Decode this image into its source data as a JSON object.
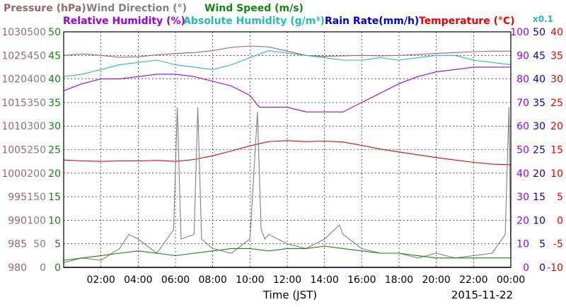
{
  "header": {
    "row1": [
      {
        "text": "Pressure (hPa)",
        "color": "#996666"
      },
      {
        "text": "Wind Direction (°)",
        "color": "#808080"
      },
      {
        "text": "Wind Speed (m/s)",
        "color": "#118811"
      }
    ],
    "row2": [
      {
        "text": "Relative Humidity (%)",
        "color": "#9900ee"
      },
      {
        "text": "Absolute Humidity (g/m³)",
        "color": "#22bbbb"
      },
      {
        "text": "Rain Rate(mm/h)",
        "color": "#0000dd"
      },
      {
        "text": "Temperature (°C)",
        "color": "#ee0000"
      }
    ],
    "abs_hum_scale": "x0.1"
  },
  "axes": {
    "pressure": [
      "980",
      "985",
      "990",
      "995",
      "1000",
      "1005",
      "1010",
      "1015",
      "1020",
      "1025",
      "1030"
    ],
    "wind_dir": [
      "0",
      "50",
      "100",
      "150",
      "200",
      "250",
      "300",
      "350",
      "400",
      "450",
      "500"
    ],
    "wind_speed": [
      "0",
      "5",
      "10",
      "15",
      "20",
      "25",
      "30",
      "35",
      "40",
      "45",
      "50"
    ],
    "humidity": [
      "0",
      "10",
      "20",
      "30",
      "40",
      "50",
      "60",
      "70",
      "80",
      "90",
      "100"
    ],
    "rain": [
      "0",
      "5",
      "10",
      "15",
      "20",
      "25",
      "30",
      "35",
      "40",
      "45",
      "50"
    ],
    "temperature": [
      "-10",
      "-5",
      "0",
      "5",
      "10",
      "15",
      "20",
      "25",
      "30",
      "35",
      "40"
    ],
    "x_ticks": [
      "02:00",
      "04:00",
      "06:00",
      "08:00",
      "10:00",
      "12:00",
      "14:00",
      "16:00",
      "18:00",
      "20:00",
      "22:00",
      "00:00"
    ],
    "x_label": "Time (JST)",
    "date": "2015-11-22"
  },
  "colors": {
    "pressure": "#996666",
    "wind_dir": "#808080",
    "wind_speed": "#118811",
    "humidity": "#9900ee",
    "abs_humidity": "#22bbbb",
    "rain": "#0000dd",
    "temperature": "#ee0000",
    "frame": "#000000"
  },
  "chart_data": {
    "type": "line",
    "x_unit": "hours (JST)",
    "series": [
      {
        "name": "Pressure (hPa)",
        "axis": "pressure",
        "x": [
          0,
          1,
          2,
          3,
          4,
          5,
          6,
          7,
          8,
          9,
          10,
          11,
          12,
          13,
          14,
          15,
          16,
          17,
          18,
          19,
          20,
          21,
          22,
          23,
          24
        ],
        "y": [
          1025,
          1025.3,
          1025,
          1024.6,
          1024.7,
          1025.1,
          1025.4,
          1025.6,
          1026,
          1026.7,
          1027,
          1026.8,
          1025.9,
          1025,
          1024.8,
          1024.9,
          1025,
          1024.9,
          1025,
          1025.2,
          1025.4,
          1025.6,
          1025.8,
          1025.9,
          1025.9
        ]
      },
      {
        "name": "Relative Humidity (%)",
        "axis": "humidity",
        "x": [
          0,
          1,
          2,
          3,
          4,
          5,
          6,
          7,
          8,
          9,
          10,
          10.5,
          11,
          12,
          13,
          14,
          15,
          16,
          17,
          18,
          19,
          20,
          21,
          22,
          23,
          24
        ],
        "y": [
          75,
          78,
          80,
          80,
          81,
          82,
          82,
          81,
          79,
          77,
          73,
          68,
          68,
          68,
          66,
          66,
          66,
          70,
          74,
          78,
          81,
          83,
          84,
          85,
          85,
          85
        ]
      },
      {
        "name": "Absolute Humidity (g/m³) x0.1",
        "axis": "humidity",
        "x": [
          0,
          1,
          2,
          3,
          4,
          5,
          6,
          7,
          8,
          9,
          10,
          11,
          12,
          13,
          14,
          15,
          16,
          17,
          18,
          19,
          20,
          21,
          22,
          23,
          24
        ],
        "y": [
          81,
          82,
          84,
          86,
          87,
          88,
          86,
          85,
          84,
          86,
          89,
          92,
          91,
          90,
          89,
          88,
          88,
          89,
          88,
          89,
          90,
          90,
          88,
          87,
          86
        ]
      },
      {
        "name": "Temperature (°C)",
        "axis": "temperature",
        "x": [
          0,
          1,
          2,
          3,
          4,
          5,
          6,
          7,
          8,
          9,
          10,
          11,
          12,
          13,
          14,
          15,
          16,
          17,
          18,
          19,
          20,
          21,
          22,
          23,
          24
        ],
        "y": [
          12.8,
          12.6,
          12.5,
          12.6,
          12.6,
          12.7,
          12.5,
          12.9,
          13.7,
          14.7,
          15.8,
          16.7,
          16.9,
          16.7,
          16.8,
          16.6,
          15.9,
          15.1,
          14.5,
          13.9,
          13.3,
          12.8,
          12.3,
          11.9,
          11.8
        ]
      },
      {
        "name": "Wind Direction (°)",
        "axis": "wind_dir",
        "x": [
          0,
          1,
          2,
          3,
          3.5,
          4,
          5,
          5.9,
          6.1,
          6.3,
          7,
          7.2,
          7.4,
          8,
          9,
          10,
          10.4,
          10.6,
          10.8,
          11,
          12,
          13,
          14,
          14.8,
          15,
          16,
          17,
          18,
          19,
          20,
          21,
          22,
          23,
          23.7,
          23.9,
          24
        ],
        "y": [
          10,
          20,
          15,
          40,
          70,
          60,
          30,
          80,
          340,
          60,
          70,
          340,
          60,
          40,
          30,
          60,
          330,
          80,
          60,
          70,
          50,
          40,
          60,
          90,
          70,
          40,
          30,
          30,
          20,
          30,
          20,
          25,
          30,
          70,
          340,
          20
        ]
      },
      {
        "name": "Wind Speed (m/s)",
        "axis": "wind_speed",
        "x": [
          0,
          1,
          2,
          3,
          4,
          5,
          6,
          7,
          8,
          9,
          10,
          11,
          12,
          13,
          14,
          15,
          16,
          17,
          18,
          19,
          20,
          21,
          22,
          23,
          24
        ],
        "y": [
          1.5,
          2,
          2.5,
          3,
          3.5,
          3,
          2.5,
          3,
          3.5,
          4,
          4,
          3.5,
          4,
          4,
          4.5,
          4,
          3.5,
          3,
          3,
          2.5,
          2,
          2,
          2,
          2,
          2
        ]
      },
      {
        "name": "Rain Rate(mm/h)",
        "axis": "rain",
        "x": [
          0,
          24
        ],
        "y": [
          0,
          0
        ]
      }
    ],
    "ylim_pressure": [
      980,
      1030
    ],
    "ylim_temperature": [
      -10,
      40
    ],
    "ylim_humidity": [
      0,
      100
    ],
    "xlim": [
      0,
      24
    ],
    "grid": true
  }
}
